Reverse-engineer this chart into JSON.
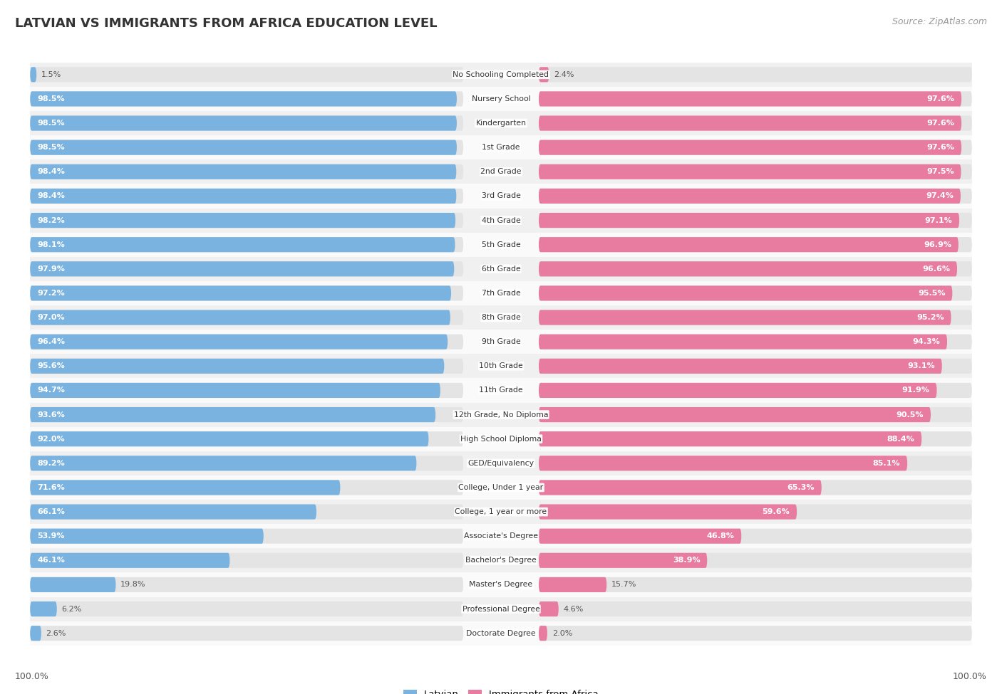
{
  "title": "LATVIAN VS IMMIGRANTS FROM AFRICA EDUCATION LEVEL",
  "source": "Source: ZipAtlas.com",
  "categories": [
    "No Schooling Completed",
    "Nursery School",
    "Kindergarten",
    "1st Grade",
    "2nd Grade",
    "3rd Grade",
    "4th Grade",
    "5th Grade",
    "6th Grade",
    "7th Grade",
    "8th Grade",
    "9th Grade",
    "10th Grade",
    "11th Grade",
    "12th Grade, No Diploma",
    "High School Diploma",
    "GED/Equivalency",
    "College, Under 1 year",
    "College, 1 year or more",
    "Associate's Degree",
    "Bachelor's Degree",
    "Master's Degree",
    "Professional Degree",
    "Doctorate Degree"
  ],
  "latvian": [
    1.5,
    98.5,
    98.5,
    98.5,
    98.4,
    98.4,
    98.2,
    98.1,
    97.9,
    97.2,
    97.0,
    96.4,
    95.6,
    94.7,
    93.6,
    92.0,
    89.2,
    71.6,
    66.1,
    53.9,
    46.1,
    19.8,
    6.2,
    2.6
  ],
  "africa": [
    2.4,
    97.6,
    97.6,
    97.6,
    97.5,
    97.4,
    97.1,
    96.9,
    96.6,
    95.5,
    95.2,
    94.3,
    93.1,
    91.9,
    90.5,
    88.4,
    85.1,
    65.3,
    59.6,
    46.8,
    38.9,
    15.7,
    4.6,
    2.0
  ],
  "latvian_color": "#7ab3e0",
  "africa_color": "#e87ca0",
  "bg_pill_color": "#e4e4e4",
  "row_bg_odd": "#f0f0f0",
  "row_bg_even": "#fafafa",
  "legend_latvian": "Latvian",
  "legend_africa": "Immigrants from Africa",
  "bottom_left": "100.0%",
  "bottom_right": "100.0%",
  "label_threshold": 30
}
